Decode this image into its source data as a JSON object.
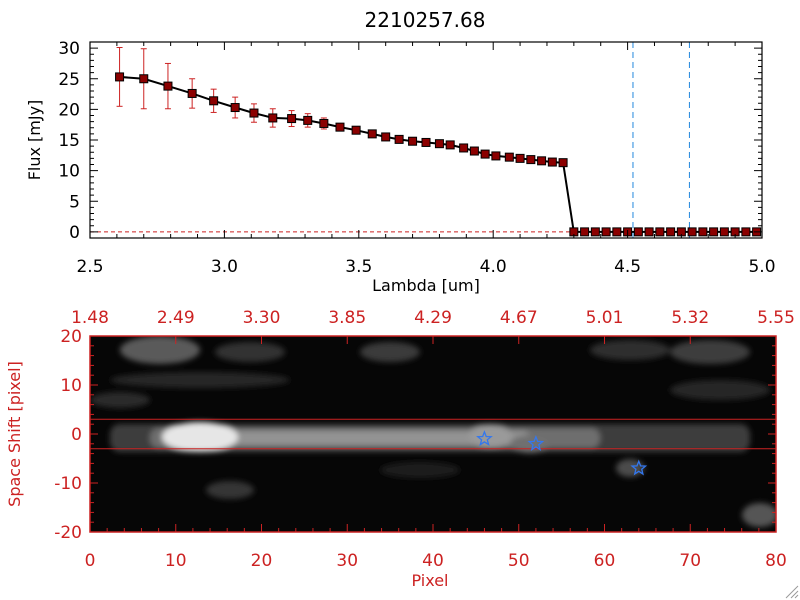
{
  "chart_data": [
    {
      "type": "line",
      "title": "2210257.68",
      "xlabel": "Lambda [um]",
      "ylabel": "Flux [mJy]",
      "xlim": [
        2.5,
        5.0
      ],
      "ylim": [
        -1,
        31
      ],
      "x_ticks": [
        "2.5",
        "3.0",
        "3.5",
        "4.0",
        "4.5",
        "5.0"
      ],
      "y_ticks": [
        "0",
        "5",
        "10",
        "15",
        "20",
        "25",
        "30"
      ],
      "x_tick_values": [
        2.5,
        3.0,
        3.5,
        4.0,
        4.5,
        5.0
      ],
      "y_tick_values": [
        0,
        5,
        10,
        15,
        20,
        25,
        30
      ],
      "series": [
        {
          "name": "flux",
          "color": "#000000",
          "marker_color": "#8b0000",
          "errorbar_color": "#cc2222",
          "x": [
            2.61,
            2.7,
            2.79,
            2.88,
            2.96,
            3.04,
            3.11,
            3.18,
            3.25,
            3.31,
            3.37,
            3.43,
            3.49,
            3.55,
            3.6,
            3.65,
            3.7,
            3.75,
            3.8,
            3.84,
            3.89,
            3.93,
            3.97,
            4.01,
            4.06,
            4.1,
            4.14,
            4.18,
            4.22,
            4.26,
            4.3,
            4.34,
            4.38,
            4.42,
            4.46,
            4.5,
            4.54,
            4.58,
            4.62,
            4.66,
            4.7,
            4.74,
            4.78,
            4.82,
            4.86,
            4.9,
            4.94,
            4.98
          ],
          "y": [
            25.3,
            25.0,
            23.8,
            22.6,
            21.4,
            20.3,
            19.4,
            18.6,
            18.5,
            18.2,
            17.7,
            17.1,
            16.6,
            16.0,
            15.5,
            15.1,
            14.8,
            14.6,
            14.4,
            14.2,
            13.7,
            13.2,
            12.7,
            12.4,
            12.2,
            12.0,
            11.8,
            11.6,
            11.4,
            11.3,
            0,
            0,
            0,
            0,
            0,
            0,
            0,
            0,
            0,
            0,
            0,
            0,
            0,
            0,
            0,
            0,
            0,
            0
          ],
          "err": [
            4.8,
            4.9,
            3.7,
            2.4,
            1.9,
            1.7,
            1.5,
            1.5,
            1.3,
            1.1,
            0.9,
            0.6,
            0.5,
            0.4,
            0.3,
            0.3,
            0.3,
            0.3,
            0.3,
            0.3,
            0.3,
            0.3,
            0.3,
            0.3,
            0.3,
            0.3,
            0.3,
            0.3,
            0.3,
            0.3,
            0,
            0,
            0,
            0,
            0,
            0,
            0,
            0,
            0,
            0,
            0,
            0,
            0,
            0,
            0,
            0,
            0,
            0
          ]
        }
      ],
      "vlines": [
        {
          "x": 4.52,
          "color": "#2288dd",
          "style": "dashed"
        },
        {
          "x": 4.73,
          "color": "#2288dd",
          "style": "dashed"
        }
      ],
      "hline": {
        "y": 0,
        "color": "#cc2222",
        "style": "dashed"
      }
    },
    {
      "type": "heatmap",
      "xlabel": "Pixel",
      "ylabel": "Space Shift [pixel]",
      "xlim": [
        0,
        80
      ],
      "ylim": [
        -20,
        20
      ],
      "x_ticks": [
        "0",
        "10",
        "20",
        "30",
        "40",
        "50",
        "60",
        "70",
        "80"
      ],
      "y_ticks": [
        "20",
        "10",
        "0",
        "-10",
        "-20"
      ],
      "x_tick_values": [
        0,
        10,
        20,
        30,
        40,
        50,
        60,
        70,
        80
      ],
      "y_tick_values": [
        20,
        10,
        0,
        -10,
        -20
      ],
      "top_axis_ticks": [
        "1.48",
        "2.49",
        "3.30",
        "3.85",
        "4.29",
        "4.67",
        "5.01",
        "5.32",
        "5.55"
      ],
      "axis_color": "#cc2222",
      "trace_band": [
        -3,
        3
      ],
      "stars": [
        {
          "x": 46,
          "y": -1,
          "color": "#3377ee"
        },
        {
          "x": 52,
          "y": -2,
          "color": "#3377ee"
        },
        {
          "x": 64,
          "y": -7,
          "color": "#3377ee"
        }
      ]
    }
  ]
}
